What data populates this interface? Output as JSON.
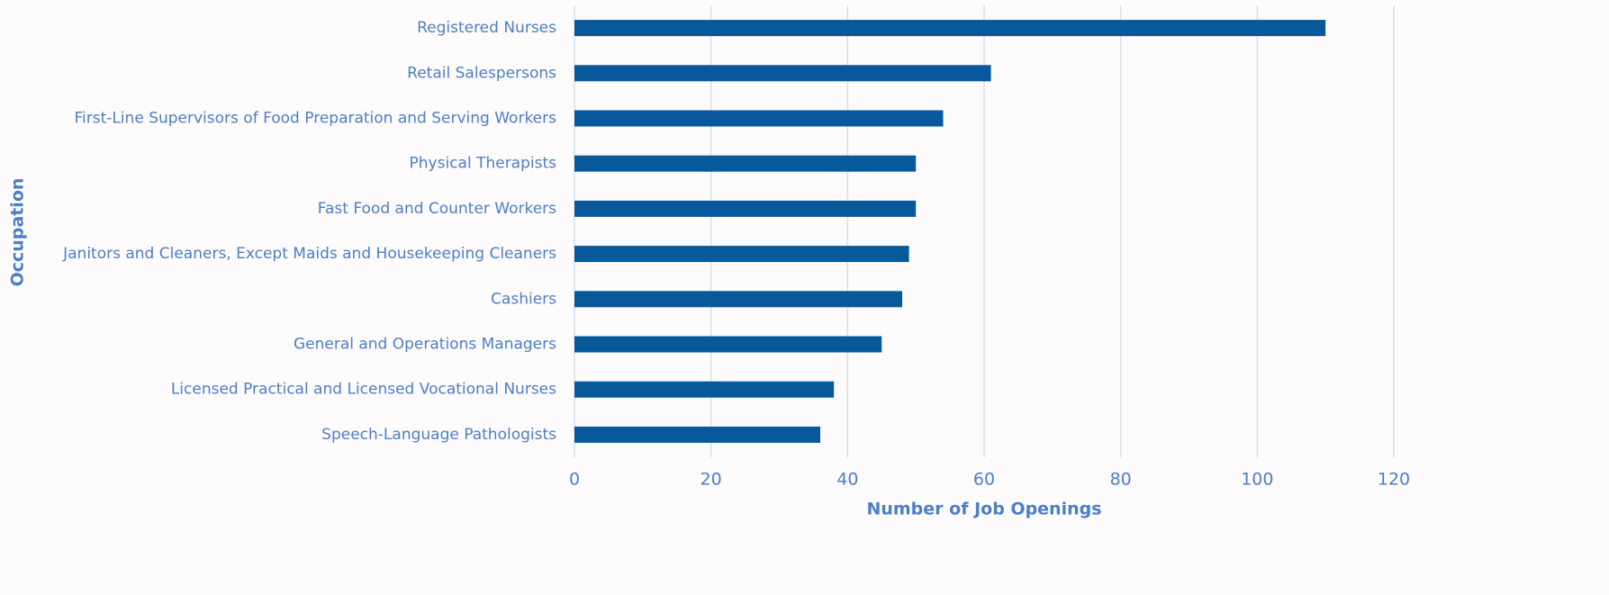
{
  "chart_data": {
    "type": "bar",
    "orientation": "horizontal",
    "x_label": "Number of Job Openings",
    "y_label": "Occupation",
    "categories": [
      "Registered Nurses",
      "Retail Salespersons",
      "First-Line Supervisors of Food Preparation and Serving Workers",
      "Physical Therapists",
      "Fast Food and Counter Workers",
      "Janitors and Cleaners, Except Maids and Housekeeping Cleaners",
      "Cashiers",
      "General and Operations Managers",
      "Licensed Practical and Licensed Vocational Nurses",
      "Speech-Language Pathologists"
    ],
    "values": [
      110,
      61,
      54,
      50,
      50,
      49,
      48,
      45,
      38,
      36
    ],
    "color": "#08599c",
    "xlim": [
      0,
      120
    ],
    "xticks": [
      0,
      20,
      40,
      60,
      80,
      100,
      120
    ],
    "grid": true
  }
}
